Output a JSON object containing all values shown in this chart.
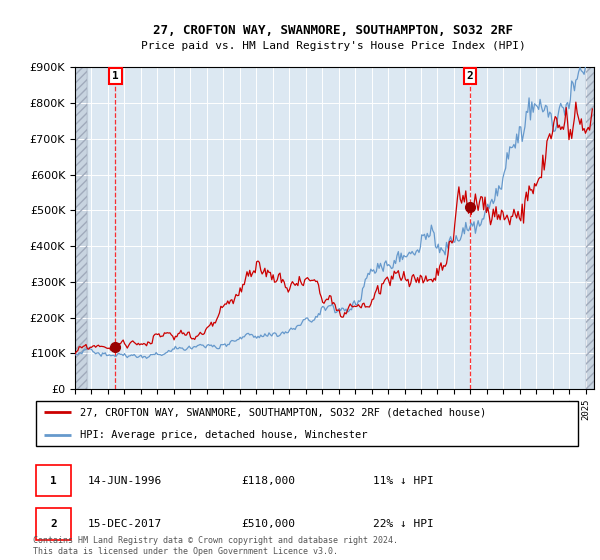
{
  "title1": "27, CROFTON WAY, SWANMORE, SOUTHAMPTON, SO32 2RF",
  "title2": "Price paid vs. HM Land Registry's House Price Index (HPI)",
  "ylim": [
    0,
    900000
  ],
  "xlim_start": 1994.0,
  "xlim_end": 2025.5,
  "sale1_x": 1996.45,
  "sale1_y": 118000,
  "sale2_x": 2017.96,
  "sale2_y": 510000,
  "legend_line1": "27, CROFTON WAY, SWANMORE, SOUTHAMPTON, SO32 2RF (detached house)",
  "legend_line2": "HPI: Average price, detached house, Winchester",
  "ann1_date": "14-JUN-1996",
  "ann1_price": "£118,000",
  "ann1_hpi": "11% ↓ HPI",
  "ann2_date": "15-DEC-2017",
  "ann2_price": "£510,000",
  "ann2_hpi": "22% ↓ HPI",
  "footer": "Contains HM Land Registry data © Crown copyright and database right 2024.\nThis data is licensed under the Open Government Licence v3.0.",
  "bg_plot": "#dce8f2",
  "line_red": "#cc0000",
  "line_blue": "#6699cc",
  "marker_red": "#990000"
}
